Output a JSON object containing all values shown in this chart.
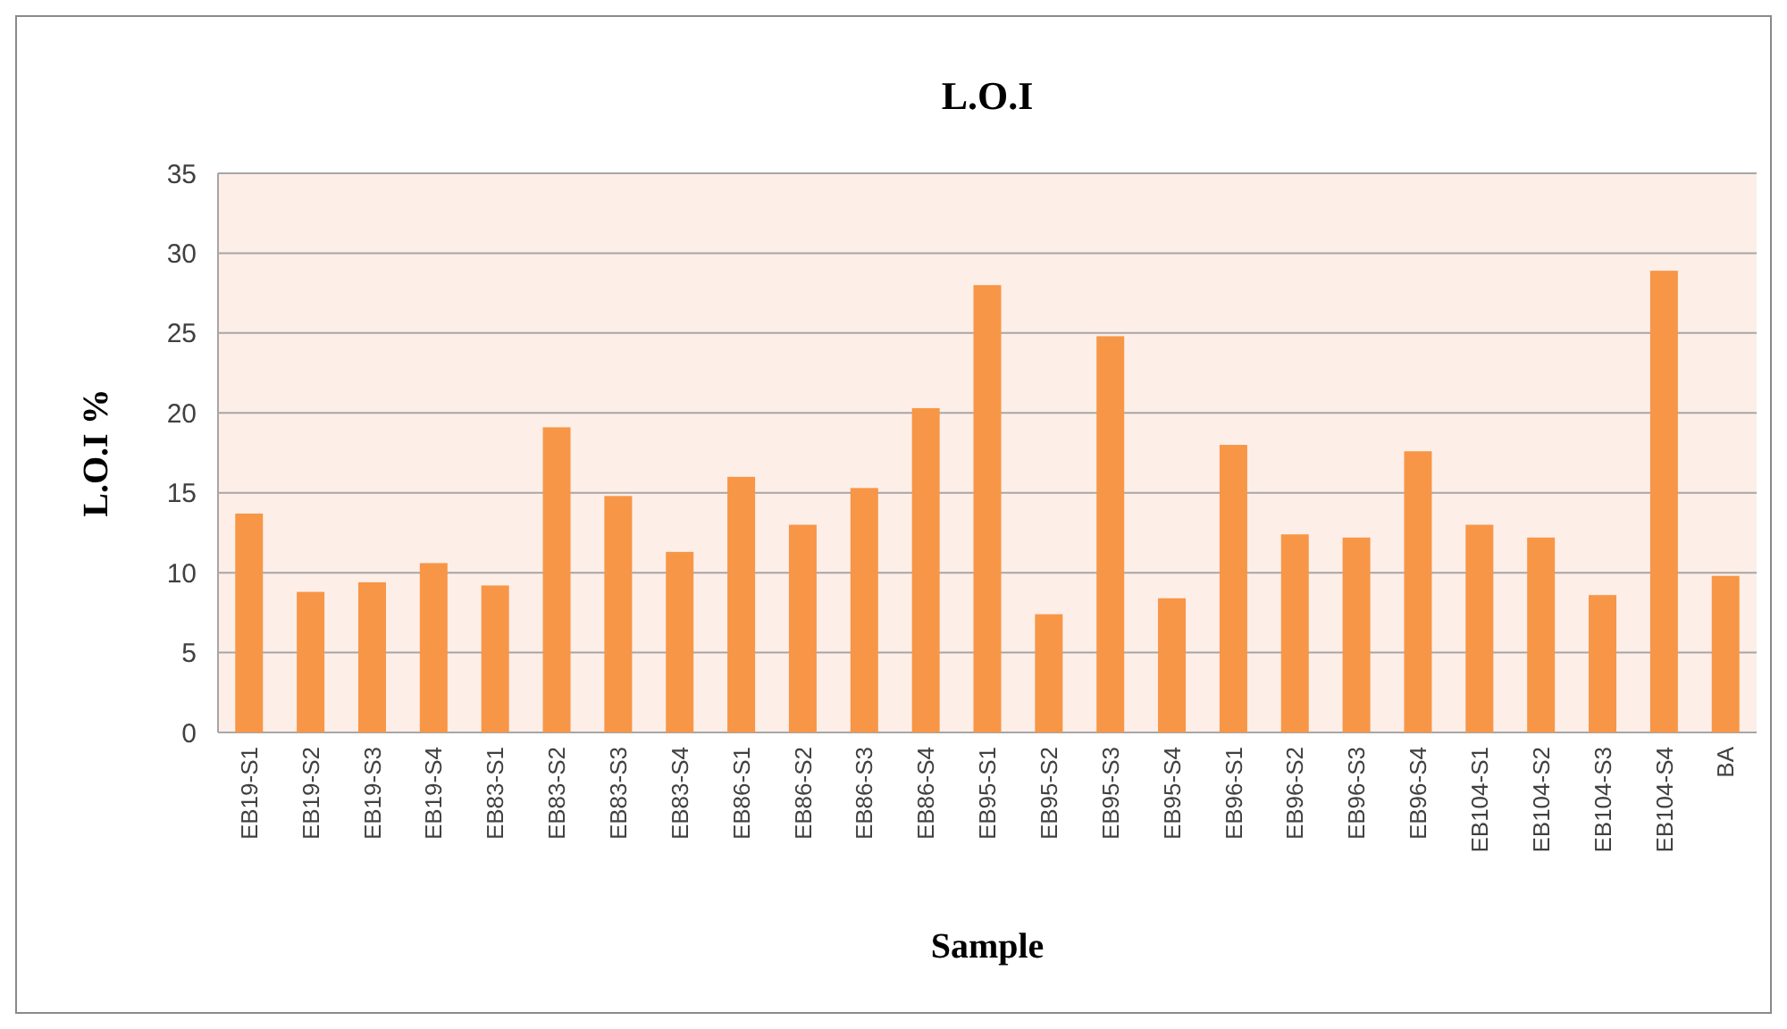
{
  "chart_data": {
    "type": "bar",
    "title": "L.O.I",
    "xlabel": "Sample",
    "ylabel": "L.O.I %",
    "categories": [
      "EB19-S1",
      "EB19-S2",
      "EB19-S3",
      "EB19-S4",
      "EB83-S1",
      "EB83-S2",
      "EB83-S3",
      "EB83-S4",
      "EB86-S1",
      "EB86-S2",
      "EB86-S3",
      "EB86-S4",
      "EB95-S1",
      "EB95-S2",
      "EB95-S3",
      "EB95-S4",
      "EB96-S1",
      "EB96-S2",
      "EB96-S3",
      "EB96-S4",
      "EB104-S1",
      "EB104-S2",
      "EB104-S3",
      "EB104-S4",
      "BA"
    ],
    "values": [
      13.7,
      8.8,
      9.4,
      10.6,
      9.2,
      19.1,
      14.8,
      11.3,
      16,
      13,
      15.3,
      20.3,
      28,
      7.4,
      24.8,
      8.4,
      18,
      12.4,
      12.2,
      17.6,
      13,
      12.2,
      8.6,
      28.9,
      9.8
    ],
    "color": "#f79646",
    "ylim": [
      0,
      35
    ],
    "yticks": [
      0,
      5,
      10,
      15,
      20,
      25,
      30,
      35
    ],
    "grid": "y"
  }
}
